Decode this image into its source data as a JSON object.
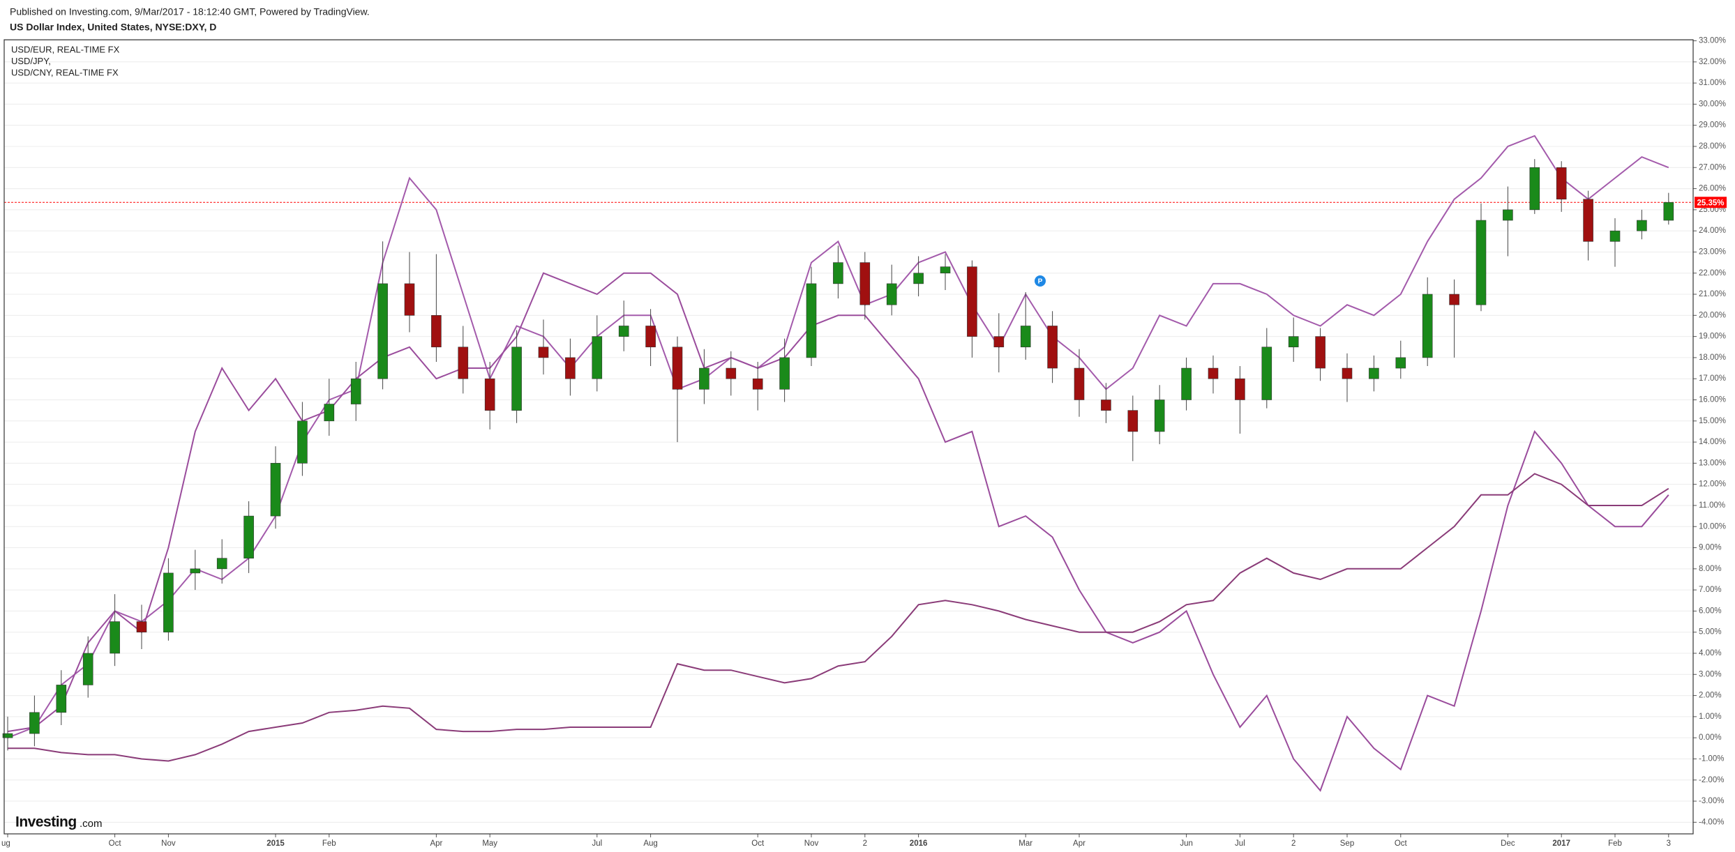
{
  "header": "Published on Investing.com, 9/Mar/2017 - 18:12:40 GMT, Powered by TradingView.",
  "logo": {
    "name": "Investing",
    "suffix": ".com"
  },
  "chart_data": {
    "type": "candlestick",
    "title": "US Dollar Index, United States, NYSE:DXY, D",
    "categories": [
      "ug",
      null,
      null,
      null,
      "Oct",
      null,
      "Nov",
      null,
      null,
      null,
      "2015",
      null,
      "Feb",
      null,
      null,
      null,
      "Apr",
      null,
      "May",
      null,
      null,
      null,
      "Jul",
      null,
      "Aug",
      null,
      null,
      null,
      "Oct",
      null,
      "Nov",
      null,
      "2",
      null,
      "2016",
      null,
      null,
      null,
      "Mar",
      null,
      "Apr",
      null,
      null,
      null,
      "Jun",
      null,
      "Jul",
      null,
      "2",
      null,
      "Sep",
      null,
      "Oct",
      null,
      null,
      null,
      "Dec",
      null,
      "2017",
      null,
      "Feb",
      null,
      "3"
    ],
    "bold_categories": [
      "2015",
      "2016",
      "2017"
    ],
    "candles": {
      "up_color": "#1a8a1a",
      "down_color": "#a01010",
      "open": [
        0,
        0.2,
        1.2,
        2.5,
        4.0,
        5.5,
        5.0,
        7.8,
        8.0,
        8.5,
        10.5,
        13.0,
        15.0,
        15.8,
        17.0,
        21.5,
        20.0,
        18.5,
        17.0,
        15.5,
        18.5,
        18.0,
        17.0,
        19.0,
        19.5,
        18.5,
        16.5,
        17.5,
        17.0,
        16.5,
        18.0,
        21.5,
        22.5,
        20.5,
        21.5,
        22.0,
        22.3,
        19.0,
        18.5,
        19.5,
        17.5,
        16.0,
        15.5,
        14.5,
        16.0,
        17.5,
        17.0,
        16.0,
        18.5,
        19.0,
        17.5,
        17.0,
        17.5,
        18.0,
        21.0,
        20.5,
        24.5,
        25.0,
        27.0,
        25.5,
        23.5,
        24.0,
        24.5
      ],
      "high": [
        1.0,
        2.0,
        3.2,
        4.8,
        6.8,
        6.3,
        8.5,
        8.9,
        9.4,
        11.2,
        13.8,
        15.9,
        17.0,
        17.8,
        23.5,
        23.0,
        22.9,
        19.5,
        17.8,
        19.3,
        19.8,
        18.9,
        20.0,
        20.7,
        20.3,
        19.0,
        18.4,
        18.3,
        17.8,
        18.9,
        22.3,
        23.3,
        23.0,
        22.4,
        22.8,
        22.9,
        22.6,
        20.1,
        21.1,
        20.2,
        18.4,
        16.8,
        16.2,
        16.7,
        18.0,
        18.1,
        17.6,
        19.4,
        19.9,
        19.4,
        18.2,
        18.1,
        18.8,
        21.8,
        21.7,
        25.3,
        26.1,
        27.4,
        27.3,
        25.9,
        24.6,
        25.0,
        25.8
      ],
      "low": [
        -0.6,
        -0.4,
        0.6,
        1.9,
        3.4,
        4.2,
        4.6,
        7.0,
        7.3,
        7.8,
        9.9,
        12.4,
        14.3,
        15.0,
        16.5,
        19.2,
        17.8,
        16.3,
        14.6,
        14.9,
        17.2,
        16.2,
        16.4,
        18.3,
        17.6,
        14.0,
        15.8,
        16.2,
        15.5,
        15.9,
        17.6,
        20.8,
        19.8,
        20.0,
        20.9,
        21.2,
        18.0,
        17.3,
        17.9,
        16.8,
        15.2,
        14.9,
        13.1,
        13.9,
        15.5,
        16.3,
        14.4,
        15.6,
        17.8,
        16.9,
        15.9,
        16.4,
        17.0,
        17.6,
        18.0,
        20.2,
        22.8,
        24.8,
        24.9,
        22.6,
        22.3,
        23.6,
        24.3
      ],
      "close": [
        0.2,
        1.2,
        2.5,
        4.0,
        5.5,
        5.0,
        7.8,
        8.0,
        8.5,
        10.5,
        13.0,
        15.0,
        15.8,
        17.0,
        21.5,
        20.0,
        18.5,
        17.0,
        15.5,
        18.5,
        18.0,
        17.0,
        19.0,
        19.5,
        18.5,
        16.5,
        17.5,
        17.0,
        16.5,
        18.0,
        21.5,
        22.5,
        20.5,
        21.5,
        22.0,
        22.3,
        19.0,
        18.5,
        19.5,
        17.5,
        16.0,
        15.5,
        14.5,
        16.0,
        17.5,
        17.0,
        16.0,
        18.5,
        19.0,
        17.5,
        17.0,
        17.5,
        18.0,
        21.0,
        20.5,
        24.5,
        25.0,
        27.0,
        25.5,
        23.5,
        24.0,
        24.5,
        25.35
      ]
    },
    "series": [
      {
        "name": "USD/EUR, REAL-TIME FX",
        "color": "#a35aab",
        "values": [
          0,
          0.5,
          2.5,
          3.5,
          6.0,
          5.5,
          6.5,
          8.0,
          7.5,
          8.5,
          10.5,
          14.0,
          16.0,
          16.5,
          22.5,
          26.5,
          25.0,
          21.0,
          17.0,
          19.5,
          19.0,
          17.5,
          19.0,
          20.0,
          20.0,
          16.5,
          17.0,
          18.0,
          17.5,
          18.5,
          22.5,
          23.5,
          20.5,
          21.0,
          22.5,
          23.0,
          20.5,
          18.5,
          21.0,
          19.0,
          18.0,
          16.5,
          17.5,
          20.0,
          19.5,
          21.5,
          21.5,
          21.0,
          20.0,
          19.5,
          20.5,
          20.0,
          21.0,
          23.5,
          25.5,
          26.5,
          28.0,
          28.5,
          26.5,
          25.5,
          26.5,
          27.5,
          27.0
        ]
      },
      {
        "name": "USD/JPY,",
        "color": "#9a4c9c",
        "values": [
          0.3,
          0.5,
          1.5,
          4.5,
          6.0,
          5.0,
          9.0,
          14.5,
          17.5,
          15.5,
          17.0,
          15.0,
          15.5,
          17.0,
          18.0,
          18.5,
          17.0,
          17.5,
          17.5,
          19.0,
          22.0,
          21.5,
          21.0,
          22.0,
          22.0,
          21.0,
          17.5,
          18.0,
          17.5,
          18.0,
          19.5,
          20.0,
          20.0,
          18.5,
          17.0,
          14.0,
          14.5,
          10.0,
          10.5,
          9.5,
          7.0,
          5.0,
          4.5,
          5.0,
          6.0,
          3.0,
          0.5,
          2.0,
          -1.0,
          -2.5,
          1.0,
          -0.5,
          -1.5,
          2.0,
          1.5,
          6.0,
          11.0,
          14.5,
          13.0,
          11.0,
          10.0,
          10.0,
          11.5
        ]
      },
      {
        "name": "USD/CNY, REAL-TIME FX",
        "color": "#8a3b78",
        "values": [
          -0.5,
          -0.5,
          -0.7,
          -0.8,
          -0.8,
          -1.0,
          -1.1,
          -0.8,
          -0.3,
          0.3,
          0.5,
          0.7,
          1.2,
          1.3,
          1.5,
          1.4,
          0.4,
          0.3,
          0.3,
          0.4,
          0.4,
          0.5,
          0.5,
          0.5,
          0.5,
          3.5,
          3.2,
          3.2,
          2.9,
          2.6,
          2.8,
          3.4,
          3.6,
          4.8,
          6.3,
          6.5,
          6.3,
          6.0,
          5.6,
          5.3,
          5.0,
          5.0,
          5.0,
          5.5,
          6.3,
          6.5,
          7.8,
          8.5,
          7.8,
          7.5,
          8.0,
          8.0,
          8.0,
          9.0,
          10.0,
          11.5,
          11.5,
          12.5,
          12.0,
          11.0,
          11.0,
          11.0,
          11.8
        ]
      }
    ],
    "price_line": {
      "value": 25.35,
      "label": "25.35%",
      "color": "#ff0000"
    },
    "marker_label": "P",
    "ylim": [
      -4.55,
      33.05
    ],
    "yticks": [
      {
        "value": -4,
        "label": "-4.00%"
      },
      {
        "value": -3,
        "label": "-3.00%"
      },
      {
        "value": -2,
        "label": "-2.00%"
      },
      {
        "value": -1,
        "label": "-1.00%"
      },
      {
        "value": 0,
        "label": "0.00%"
      },
      {
        "value": 1,
        "label": "1.00%"
      },
      {
        "value": 2,
        "label": "2.00%"
      },
      {
        "value": 3,
        "label": "3.00%"
      },
      {
        "value": 4,
        "label": "4.00%"
      },
      {
        "value": 5,
        "label": "5.00%"
      },
      {
        "value": 6,
        "label": "6.00%"
      },
      {
        "value": 7,
        "label": "7.00%"
      },
      {
        "value": 8,
        "label": "8.00%"
      },
      {
        "value": 9,
        "label": "9.00%"
      },
      {
        "value": 10,
        "label": "10.00%"
      },
      {
        "value": 11,
        "label": "11.00%"
      },
      {
        "value": 12,
        "label": "12.00%"
      },
      {
        "value": 13,
        "label": "13.00%"
      },
      {
        "value": 14,
        "label": "14.00%"
      },
      {
        "value": 15,
        "label": "15.00%"
      },
      {
        "value": 16,
        "label": "16.00%"
      },
      {
        "value": 17,
        "label": "17.00%"
      },
      {
        "value": 18,
        "label": "18.00%"
      },
      {
        "value": 19,
        "label": "19.00%"
      },
      {
        "value": 20,
        "label": "20.00%"
      },
      {
        "value": 21,
        "label": "21.00%"
      },
      {
        "value": 22,
        "label": "22.00%"
      },
      {
        "value": 23,
        "label": "23.00%"
      },
      {
        "value": 24,
        "label": "24.00%"
      },
      {
        "value": 25,
        "label": "25.00%"
      },
      {
        "value": 26,
        "label": "26.00%"
      },
      {
        "value": 27,
        "label": "27.00%"
      },
      {
        "value": 28,
        "label": "28.00%"
      },
      {
        "value": 29,
        "label": "29.00%"
      },
      {
        "value": 30,
        "label": "30.00%"
      },
      {
        "value": 31,
        "label": "31.00%"
      },
      {
        "value": 32,
        "label": "32.00%"
      },
      {
        "value": 33,
        "label": "33.00%"
      }
    ],
    "grid": true,
    "legend": "top-left"
  }
}
